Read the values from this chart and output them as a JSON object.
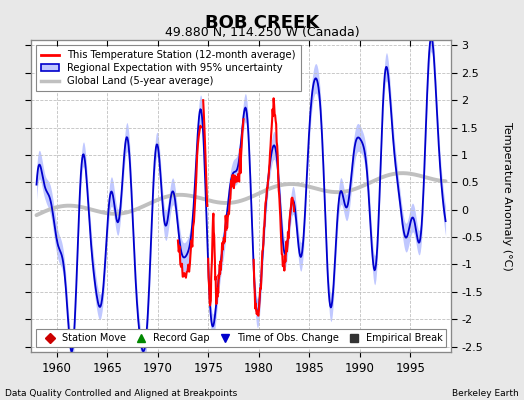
{
  "title": "BOB CREEK",
  "subtitle": "49.880 N, 114.250 W (Canada)",
  "footer_left": "Data Quality Controlled and Aligned at Breakpoints",
  "footer_right": "Berkeley Earth",
  "ylabel": "Temperature Anomaly (°C)",
  "xlim": [
    1957.5,
    1999.0
  ],
  "ylim": [
    -2.6,
    3.1
  ],
  "yticks": [
    -2.5,
    -2.0,
    -1.5,
    -1.0,
    -0.5,
    0.0,
    0.5,
    1.0,
    1.5,
    2.0,
    2.5,
    3.0
  ],
  "xticks": [
    1960,
    1965,
    1970,
    1975,
    1980,
    1985,
    1990,
    1995
  ],
  "bg_color": "#e8e8e8",
  "plot_bg_color": "#ffffff",
  "regional_line_color": "#0000cc",
  "regional_band_color": "#c0c8ff",
  "global_color": "#c0c0c0",
  "station_color": "#ff0000",
  "legend_items": [
    {
      "label": "This Temperature Station (12-month average)",
      "color": "#ff0000"
    },
    {
      "label": "Regional Expectation with 95% uncertainty",
      "color": "#0000cc",
      "band": "#c0c8ff"
    },
    {
      "label": "Global Land (5-year average)",
      "color": "#c0c0c0"
    }
  ],
  "bottom_legend": [
    {
      "label": "Station Move",
      "color": "#cc0000",
      "marker": "D"
    },
    {
      "label": "Record Gap",
      "color": "#008800",
      "marker": "^"
    },
    {
      "label": "Time of Obs. Change",
      "color": "#0000cc",
      "marker": "v"
    },
    {
      "label": "Empirical Break",
      "color": "#333333",
      "marker": "s"
    }
  ]
}
